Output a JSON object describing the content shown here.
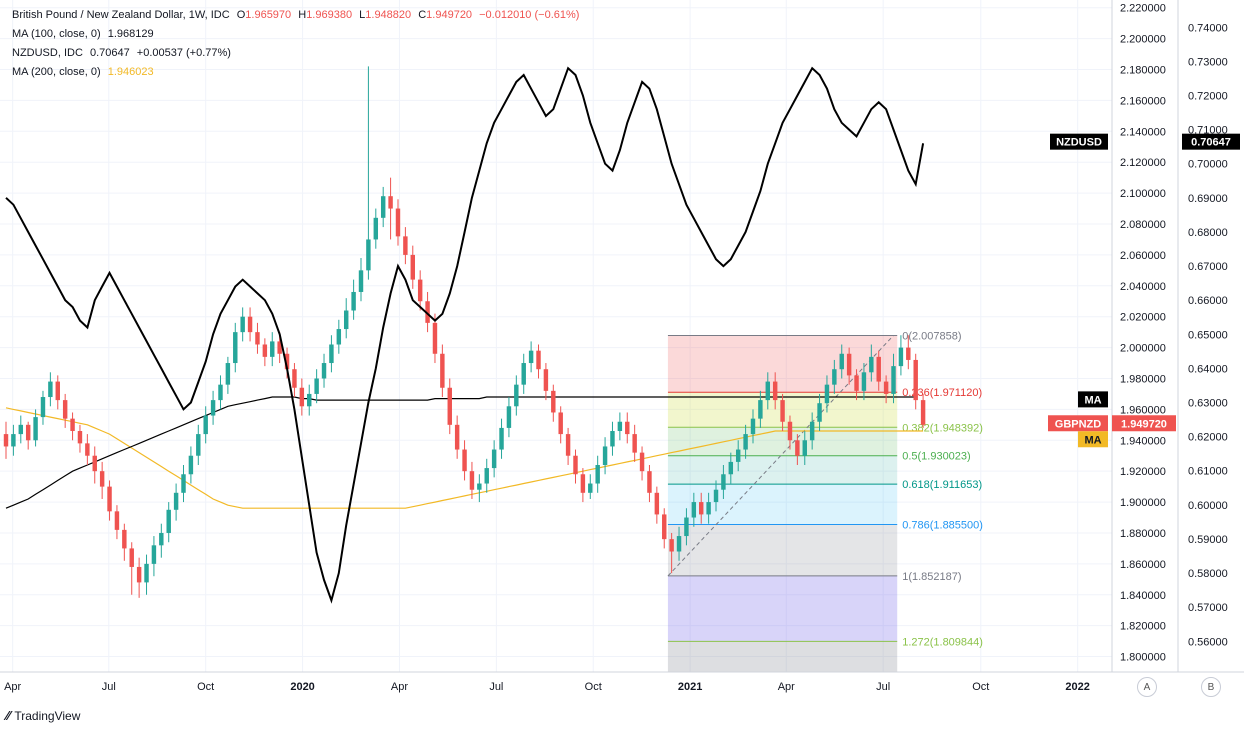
{
  "legend": {
    "main": {
      "title": "British Pound / New Zealand Dollar, 1W, IDC",
      "o_label": "O",
      "o": "1.965970",
      "h_label": "H",
      "h": "1.969380",
      "l_label": "L",
      "l": "1.948820",
      "c_label": "C",
      "c": "1.949720",
      "change": "−0.012010 (−0.61%)"
    },
    "ma100": {
      "label": "MA (100, close, 0)",
      "value": "1.968129"
    },
    "nzdusd": {
      "label": "NZDUSD, IDC",
      "value": "0.70647",
      "change": "+0.00537 (+0.77%)"
    },
    "ma200": {
      "label": "MA (200, close, 0)",
      "value": "1.946023"
    }
  },
  "branding": {
    "name": "TradingView"
  },
  "axis_buttons": {
    "a": "A",
    "b": "B"
  },
  "colors": {
    "up": "#26a69a",
    "down": "#ef5350",
    "nzdusd": "#000000",
    "ma100": "#000000",
    "ma200": "#f2b926",
    "grid": "#f0f3fa"
  },
  "chart_data": {
    "type": "candlestick",
    "symbol": "GBPNZD",
    "interval": "1W",
    "ylim": [
      1.79,
      2.225
    ],
    "y2lim": [
      0.551,
      0.748
    ],
    "left_axis_ticks": [
      "2.220000",
      "2.200000",
      "2.180000",
      "2.160000",
      "2.140000",
      "2.120000",
      "2.100000",
      "2.080000",
      "2.060000",
      "2.040000",
      "2.020000",
      "2.000000",
      "1.980000",
      "1.960000",
      "1.940000",
      "1.920000",
      "1.900000",
      "1.880000",
      "1.860000",
      "1.840000",
      "1.820000",
      "1.800000"
    ],
    "right_axis_ticks": [
      "0.74000",
      "0.73000",
      "0.72000",
      "0.71000",
      "0.70000",
      "0.69000",
      "0.68000",
      "0.67000",
      "0.66000",
      "0.65000",
      "0.64000",
      "0.63000",
      "0.62000",
      "0.61000",
      "0.60000",
      "0.59000",
      "0.58000",
      "0.57000",
      "0.56000"
    ],
    "x_ticks": [
      {
        "label": "Apr",
        "t": 0.9
      },
      {
        "label": "Jul",
        "t": 13.9
      },
      {
        "label": "Oct",
        "t": 27.0
      },
      {
        "label": "2020",
        "t": 40.1,
        "bold": true
      },
      {
        "label": "Apr",
        "t": 53.2
      },
      {
        "label": "Jul",
        "t": 66.3
      },
      {
        "label": "Oct",
        "t": 79.4
      },
      {
        "label": "2021",
        "t": 92.5,
        "bold": true
      },
      {
        "label": "Apr",
        "t": 105.5
      },
      {
        "label": "Jul",
        "t": 118.6
      },
      {
        "label": "Oct",
        "t": 131.8
      },
      {
        "label": "2022",
        "t": 144.9,
        "bold": true
      }
    ],
    "candles": [
      [
        1.944,
        1.936,
        1.952,
        1.928
      ],
      [
        1.936,
        1.944,
        1.95,
        1.93
      ],
      [
        1.944,
        1.95,
        1.956,
        1.938
      ],
      [
        1.95,
        1.94,
        1.952,
        1.934
      ],
      [
        1.94,
        1.955,
        1.96,
        1.936
      ],
      [
        1.955,
        1.968,
        1.972,
        1.95
      ],
      [
        1.968,
        1.978,
        1.984,
        1.962
      ],
      [
        1.978,
        1.966,
        1.982,
        1.96
      ],
      [
        1.966,
        1.954,
        1.97,
        1.948
      ],
      [
        1.954,
        1.946,
        1.958,
        1.94
      ],
      [
        1.946,
        1.938,
        1.95,
        1.932
      ],
      [
        1.938,
        1.93,
        1.944,
        1.924
      ],
      [
        1.93,
        1.92,
        1.936,
        1.912
      ],
      [
        1.92,
        1.91,
        1.926,
        1.902
      ],
      [
        1.91,
        1.894,
        1.914,
        1.888
      ],
      [
        1.894,
        1.882,
        1.898,
        1.876
      ],
      [
        1.882,
        1.87,
        1.886,
        1.862
      ],
      [
        1.87,
        1.858,
        1.874,
        1.84
      ],
      [
        1.858,
        1.848,
        1.864,
        1.838
      ],
      [
        1.848,
        1.86,
        1.866,
        1.84
      ],
      [
        1.86,
        1.872,
        1.878,
        1.852
      ],
      [
        1.872,
        1.88,
        1.886,
        1.864
      ],
      [
        1.88,
        1.895,
        1.9,
        1.874
      ],
      [
        1.895,
        1.906,
        1.912,
        1.888
      ],
      [
        1.906,
        1.918,
        1.924,
        1.9
      ],
      [
        1.918,
        1.93,
        1.936,
        1.912
      ],
      [
        1.93,
        1.944,
        1.95,
        1.924
      ],
      [
        1.944,
        1.956,
        1.962,
        1.938
      ],
      [
        1.956,
        1.966,
        1.972,
        1.95
      ],
      [
        1.966,
        1.976,
        1.982,
        1.96
      ],
      [
        1.976,
        1.99,
        1.994,
        1.97
      ],
      [
        1.99,
        2.01,
        2.016,
        1.984
      ],
      [
        2.01,
        2.02,
        2.026,
        2.004
      ],
      [
        2.02,
        2.01,
        2.026,
        2.004
      ],
      [
        2.01,
        2.002,
        2.016,
        1.996
      ],
      [
        2.002,
        1.994,
        2.006,
        1.988
      ],
      [
        1.994,
        2.004,
        2.01,
        1.988
      ],
      [
        2.004,
        1.996,
        2.01,
        1.99
      ],
      [
        1.996,
        1.986,
        2.0,
        1.98
      ],
      [
        1.986,
        1.974,
        1.99,
        1.968
      ],
      [
        1.974,
        1.962,
        1.98,
        1.956
      ],
      [
        1.962,
        1.97,
        1.976,
        1.956
      ],
      [
        1.97,
        1.98,
        1.986,
        1.964
      ],
      [
        1.98,
        1.99,
        1.996,
        1.974
      ],
      [
        1.99,
        2.002,
        2.008,
        1.984
      ],
      [
        2.002,
        2.012,
        2.018,
        1.996
      ],
      [
        2.012,
        2.024,
        2.032,
        2.006
      ],
      [
        2.024,
        2.036,
        2.044,
        2.018
      ],
      [
        2.036,
        2.05,
        2.058,
        2.03
      ],
      [
        2.05,
        2.07,
        2.182,
        2.044
      ],
      [
        2.07,
        2.084,
        2.09,
        2.064
      ],
      [
        2.084,
        2.098,
        2.104,
        2.078
      ],
      [
        2.098,
        2.09,
        2.11,
        2.07
      ],
      [
        2.09,
        2.072,
        2.096,
        2.066
      ],
      [
        2.072,
        2.06,
        2.078,
        2.054
      ],
      [
        2.06,
        2.044,
        2.066,
        2.038
      ],
      [
        2.044,
        2.03,
        2.05,
        2.024
      ],
      [
        2.03,
        2.016,
        2.036,
        2.01
      ],
      [
        2.016,
        1.996,
        2.022,
        1.99
      ],
      [
        1.996,
        1.974,
        2.002,
        1.968
      ],
      [
        1.974,
        1.95,
        1.98,
        1.944
      ],
      [
        1.95,
        1.934,
        1.956,
        1.928
      ],
      [
        1.934,
        1.92,
        1.94,
        1.914
      ],
      [
        1.92,
        1.908,
        1.926,
        1.902
      ],
      [
        1.908,
        1.912,
        1.918,
        1.9
      ],
      [
        1.912,
        1.922,
        1.928,
        1.906
      ],
      [
        1.922,
        1.934,
        1.94,
        1.916
      ],
      [
        1.934,
        1.948,
        1.954,
        1.928
      ],
      [
        1.948,
        1.962,
        1.968,
        1.942
      ],
      [
        1.962,
        1.976,
        1.982,
        1.956
      ],
      [
        1.976,
        1.99,
        1.996,
        1.97
      ],
      [
        1.99,
        1.998,
        2.004,
        1.984
      ],
      [
        1.998,
        1.986,
        2.002,
        1.98
      ],
      [
        1.986,
        1.972,
        1.99,
        1.966
      ],
      [
        1.972,
        1.958,
        1.976,
        1.952
      ],
      [
        1.958,
        1.944,
        1.962,
        1.938
      ],
      [
        1.944,
        1.93,
        1.948,
        1.924
      ],
      [
        1.93,
        1.918,
        1.934,
        1.912
      ],
      [
        1.918,
        1.906,
        1.922,
        1.9
      ],
      [
        1.906,
        1.912,
        1.918,
        1.902
      ],
      [
        1.912,
        1.924,
        1.93,
        1.906
      ],
      [
        1.924,
        1.936,
        1.942,
        1.918
      ],
      [
        1.936,
        1.946,
        1.952,
        1.93
      ],
      [
        1.946,
        1.952,
        1.958,
        1.94
      ],
      [
        1.952,
        1.944,
        1.958,
        1.938
      ],
      [
        1.944,
        1.932,
        1.95,
        1.926
      ],
      [
        1.932,
        1.92,
        1.936,
        1.914
      ],
      [
        1.92,
        1.906,
        1.924,
        1.9
      ],
      [
        1.906,
        1.892,
        1.91,
        1.886
      ],
      [
        1.892,
        1.876,
        1.896,
        1.87
      ],
      [
        1.876,
        1.868,
        1.88,
        1.854
      ],
      [
        1.868,
        1.878,
        1.884,
        1.862
      ],
      [
        1.878,
        1.89,
        1.896,
        1.872
      ],
      [
        1.89,
        1.9,
        1.906,
        1.884
      ],
      [
        1.9,
        1.892,
        1.906,
        1.886
      ],
      [
        1.892,
        1.9,
        1.906,
        1.886
      ],
      [
        1.9,
        1.908,
        1.914,
        1.894
      ],
      [
        1.908,
        1.918,
        1.924,
        1.902
      ],
      [
        1.918,
        1.926,
        1.932,
        1.912
      ],
      [
        1.926,
        1.934,
        1.94,
        1.92
      ],
      [
        1.934,
        1.944,
        1.95,
        1.928
      ],
      [
        1.944,
        1.954,
        1.96,
        1.938
      ],
      [
        1.954,
        1.966,
        1.972,
        1.948
      ],
      [
        1.966,
        1.978,
        1.984,
        1.96
      ],
      [
        1.978,
        1.966,
        1.984,
        1.96
      ],
      [
        1.966,
        1.952,
        1.97,
        1.946
      ],
      [
        1.952,
        1.94,
        1.956,
        1.934
      ],
      [
        1.94,
        1.93,
        1.944,
        1.924
      ],
      [
        1.93,
        1.94,
        1.946,
        1.924
      ],
      [
        1.94,
        1.952,
        1.958,
        1.934
      ],
      [
        1.952,
        1.964,
        1.97,
        1.946
      ],
      [
        1.964,
        1.976,
        1.982,
        1.958
      ],
      [
        1.976,
        1.986,
        1.992,
        1.97
      ],
      [
        1.986,
        1.996,
        2.002,
        1.98
      ],
      [
        1.996,
        1.982,
        2.0,
        1.976
      ],
      [
        1.982,
        1.972,
        1.986,
        1.966
      ],
      [
        1.972,
        1.984,
        1.99,
        1.966
      ],
      [
        1.984,
        1.994,
        2.002,
        1.978
      ],
      [
        1.994,
        1.978,
        1.998,
        1.972
      ],
      [
        1.978,
        1.97,
        1.982,
        1.964
      ],
      [
        1.97,
        1.988,
        1.996,
        1.964
      ],
      [
        1.988,
        2.0,
        2.008,
        1.982
      ],
      [
        2.0,
        1.992,
        2.008,
        1.986
      ],
      [
        1.992,
        1.966,
        1.996,
        1.96
      ],
      [
        1.966,
        1.95,
        1.97,
        1.948
      ]
    ],
    "nzdusd": [
      0.69,
      0.688,
      0.684,
      0.68,
      0.676,
      0.672,
      0.668,
      0.664,
      0.66,
      0.658,
      0.654,
      0.652,
      0.66,
      0.664,
      0.668,
      0.664,
      0.66,
      0.656,
      0.652,
      0.648,
      0.644,
      0.64,
      0.636,
      0.632,
      0.628,
      0.63,
      0.636,
      0.642,
      0.65,
      0.656,
      0.66,
      0.664,
      0.666,
      0.664,
      0.662,
      0.66,
      0.656,
      0.65,
      0.64,
      0.628,
      0.614,
      0.6,
      0.586,
      0.578,
      0.572,
      0.58,
      0.594,
      0.606,
      0.618,
      0.63,
      0.64,
      0.652,
      0.662,
      0.67,
      0.666,
      0.66,
      0.658,
      0.656,
      0.654,
      0.656,
      0.662,
      0.67,
      0.68,
      0.69,
      0.698,
      0.706,
      0.712,
      0.716,
      0.72,
      0.724,
      0.726,
      0.722,
      0.718,
      0.714,
      0.716,
      0.722,
      0.728,
      0.726,
      0.72,
      0.712,
      0.706,
      0.7,
      0.698,
      0.704,
      0.712,
      0.718,
      0.724,
      0.722,
      0.716,
      0.708,
      0.7,
      0.694,
      0.688,
      0.684,
      0.68,
      0.676,
      0.672,
      0.67,
      0.672,
      0.676,
      0.68,
      0.686,
      0.692,
      0.7,
      0.706,
      0.712,
      0.716,
      0.72,
      0.724,
      0.728,
      0.726,
      0.722,
      0.716,
      0.712,
      0.71,
      0.708,
      0.712,
      0.716,
      0.718,
      0.716,
      0.71,
      0.704,
      0.698,
      0.694,
      0.706
    ],
    "ma100": [
      1.896,
      1.898,
      1.9,
      1.902,
      1.905,
      1.908,
      1.911,
      1.914,
      1.917,
      1.92,
      1.922,
      1.924,
      1.926,
      1.928,
      1.93,
      1.932,
      1.934,
      1.936,
      1.938,
      1.94,
      1.942,
      1.944,
      1.946,
      1.948,
      1.95,
      1.952,
      1.954,
      1.956,
      1.958,
      1.96,
      1.962,
      1.963,
      1.964,
      1.965,
      1.966,
      1.967,
      1.968,
      1.968,
      1.968,
      1.968,
      1.967,
      1.967,
      1.966,
      1.966,
      1.966,
      1.966,
      1.966,
      1.966,
      1.966,
      1.966,
      1.966,
      1.966,
      1.966,
      1.966,
      1.966,
      1.966,
      1.966,
      1.966,
      1.967,
      1.967,
      1.967,
      1.967,
      1.967,
      1.967,
      1.967,
      1.968,
      1.968,
      1.968,
      1.968,
      1.968,
      1.968,
      1.968,
      1.968,
      1.968,
      1.968,
      1.968,
      1.968,
      1.968,
      1.968,
      1.968,
      1.968,
      1.968,
      1.968,
      1.968,
      1.968,
      1.968,
      1.968,
      1.968,
      1.968,
      1.968,
      1.968,
      1.968,
      1.968,
      1.968,
      1.968,
      1.968,
      1.968,
      1.968,
      1.968,
      1.968,
      1.968,
      1.968,
      1.968,
      1.968,
      1.968,
      1.968,
      1.968,
      1.968,
      1.968,
      1.968,
      1.968,
      1.968,
      1.968,
      1.968,
      1.968,
      1.968,
      1.968,
      1.968,
      1.968,
      1.968,
      1.968,
      1.968,
      1.968,
      1.968
    ],
    "ma200": [
      1.961,
      1.96,
      1.959,
      1.958,
      1.957,
      1.956,
      1.955,
      1.954,
      1.953,
      1.952,
      1.951,
      1.95,
      1.948,
      1.946,
      1.944,
      1.941,
      1.938,
      1.935,
      1.932,
      1.929,
      1.926,
      1.923,
      1.92,
      1.917,
      1.914,
      1.911,
      1.908,
      1.905,
      1.902,
      1.9,
      1.898,
      1.897,
      1.896,
      1.896,
      1.896,
      1.896,
      1.896,
      1.896,
      1.896,
      1.896,
      1.896,
      1.896,
      1.896,
      1.896,
      1.896,
      1.896,
      1.896,
      1.896,
      1.896,
      1.896,
      1.896,
      1.896,
      1.896,
      1.896,
      1.896,
      1.897,
      1.898,
      1.899,
      1.9,
      1.901,
      1.902,
      1.903,
      1.904,
      1.905,
      1.906,
      1.907,
      1.908,
      1.909,
      1.91,
      1.911,
      1.912,
      1.913,
      1.914,
      1.915,
      1.916,
      1.917,
      1.918,
      1.919,
      1.92,
      1.921,
      1.922,
      1.923,
      1.924,
      1.925,
      1.926,
      1.927,
      1.928,
      1.929,
      1.93,
      1.931,
      1.932,
      1.933,
      1.934,
      1.935,
      1.936,
      1.937,
      1.938,
      1.939,
      1.94,
      1.941,
      1.942,
      1.943,
      1.944,
      1.945,
      1.946,
      1.946,
      1.946,
      1.946,
      1.946,
      1.946,
      1.946,
      1.946,
      1.946,
      1.946,
      1.946,
      1.946,
      1.946,
      1.946,
      1.946,
      1.946,
      1.946,
      1.946,
      1.946,
      1.946,
      1.946
    ],
    "fibonacci": {
      "t_start": 89.5,
      "t_end": 120.5,
      "levels": [
        {
          "ratio": "0",
          "price": 2.007858,
          "label": "0(2.007858)",
          "color": "#787b86",
          "fill": "rgba(239,83,80,0.22)"
        },
        {
          "ratio": "0.236",
          "price": 1.97112,
          "label": "0.236(1.971120)",
          "color": "#e53935",
          "fill": "rgba(205,220,57,0.25)"
        },
        {
          "ratio": "0.382",
          "price": 1.948392,
          "label": "0.382(1.948392)",
          "color": "#8bc34a",
          "fill": "rgba(76,175,80,0.18)"
        },
        {
          "ratio": "0.5",
          "price": 1.930023,
          "label": "0.5(1.930023)",
          "color": "#4caf50",
          "fill": "rgba(38,166,154,0.16)"
        },
        {
          "ratio": "0.618",
          "price": 1.911653,
          "label": "0.618(1.911653)",
          "color": "#009688",
          "fill": "rgba(3,169,244,0.14)"
        },
        {
          "ratio": "0.786",
          "price": 1.8855,
          "label": "0.786(1.885500)",
          "color": "#2196f3",
          "fill": "rgba(120,123,134,0.2)"
        },
        {
          "ratio": "1",
          "price": 1.852187,
          "label": "1(1.852187)",
          "color": "#787b86",
          "fill": "rgba(98,85,230,0.25)"
        },
        {
          "ratio": "1.272",
          "price": 1.809844,
          "label": "1.272(1.809844)",
          "color": "#8bc34a",
          "fill": "rgba(120,123,134,0.25)"
        }
      ],
      "trend_from": {
        "t": 89.5,
        "price": 1.852187
      },
      "trend_to": {
        "t": 120.0,
        "price": 2.007858
      }
    },
    "price_labels": [
      {
        "text": "NZDUSD",
        "axis": "right",
        "bg": "#000000",
        "fg": "#ffffff",
        "value": 0.70647,
        "scale": "nzd"
      },
      {
        "text": "0.70647",
        "axis": "right",
        "bg": "#000000",
        "fg": "#ffffff",
        "value": 0.70647,
        "scale": "nzd"
      },
      {
        "text": "MA",
        "axis": "left",
        "bg": "#000000",
        "fg": "#ffffff",
        "value": 1.96,
        "scale": "main"
      },
      {
        "text": "GBPNZD",
        "axis": "left",
        "bg": "#ef5350",
        "fg": "#ffffff",
        "value": 1.94972,
        "scale": "main"
      },
      {
        "text": "1.949720",
        "axis": "left",
        "bg": "#ef5350",
        "fg": "#ffffff",
        "value": 1.94972,
        "scale": "main"
      },
      {
        "text": "MA",
        "axis": "left",
        "bg": "#f2b926",
        "fg": "#131722",
        "value": 1.944,
        "scale": "main"
      }
    ]
  }
}
